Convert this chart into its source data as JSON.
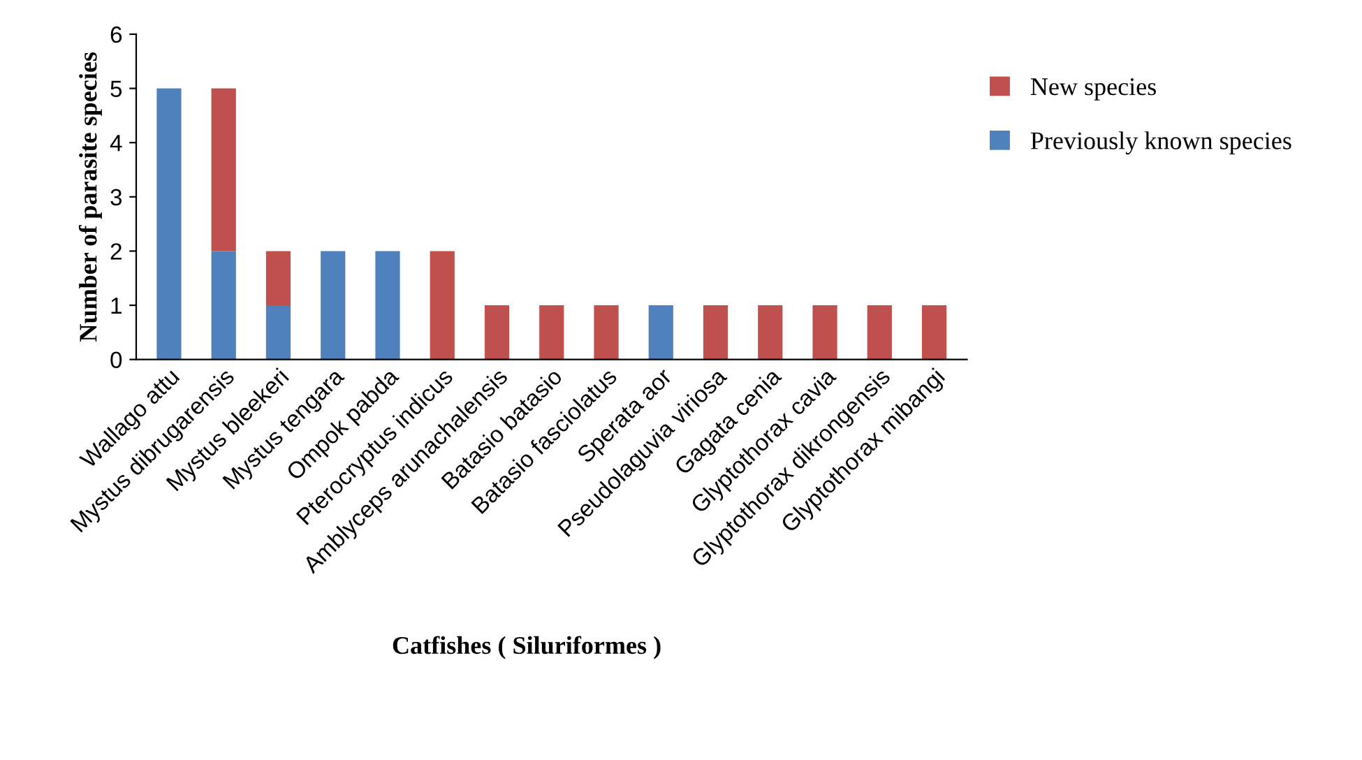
{
  "chart_data": {
    "type": "bar",
    "stacked": true,
    "xlabel": "Catfishes ( Siluriformes )",
    "ylabel": "Number of parasite species",
    "categories": [
      "Wallago attu",
      "Mystus dibrugarensis",
      "Mystus bleekeri",
      "Mystus tengara",
      "Ompok pabda",
      "Pterocryptus indicus",
      "Amblyceps arunachalensis",
      "Batasio batasio",
      "Batasio fasciolatus",
      "Sperata aor",
      "Pseudolaguvia viriosa",
      "Gagata cenia",
      "Glyptothorax cavia",
      "Glyptothorax dikrongensis",
      "Glyptothorax mibangi"
    ],
    "series": [
      {
        "name": "Previously known species",
        "color": "#4f81bd",
        "values": [
          5,
          2,
          1,
          2,
          2,
          0,
          0,
          0,
          0,
          1,
          0,
          0,
          0,
          0,
          0
        ]
      },
      {
        "name": "New species",
        "color": "#c0504d",
        "values": [
          0,
          3,
          1,
          0,
          0,
          2,
          1,
          1,
          1,
          0,
          1,
          1,
          1,
          1,
          1
        ]
      }
    ],
    "ylim": [
      0,
      6
    ],
    "yticks": [
      0,
      1,
      2,
      3,
      4,
      5,
      6
    ],
    "grid": false,
    "legend": "right"
  }
}
